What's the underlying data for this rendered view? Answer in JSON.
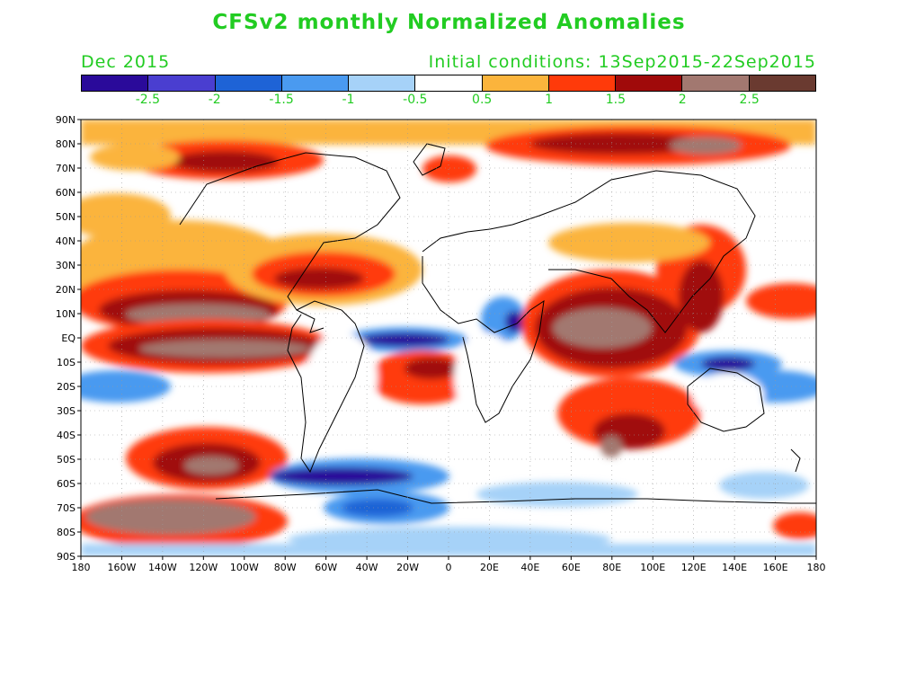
{
  "header": {
    "title": "CFSv2 monthly Normalized Anomalies",
    "month": "Dec 2015",
    "initial_conditions": "Initial conditions: 13Sep2015-22Sep2015"
  },
  "colorbar": {
    "colors": [
      "#2a0a9a",
      "#4a3ed0",
      "#1e63d6",
      "#4a9af0",
      "#a6d2f8",
      "#ffffff",
      "#fbb43c",
      "#ff3a0a",
      "#a00a0a",
      "#a27870",
      "#6a3a30"
    ],
    "labels": [
      "-2.5",
      "-2",
      "-1.5",
      "-1",
      "-0.5",
      "0.5",
      "1",
      "1.5",
      "2",
      "2.5"
    ]
  },
  "axes": {
    "lat_labels": [
      "90N",
      "80N",
      "70N",
      "60N",
      "50N",
      "40N",
      "30N",
      "20N",
      "10N",
      "EQ",
      "10S",
      "20S",
      "30S",
      "40S",
      "50S",
      "60S",
      "70S",
      "80S",
      "90S"
    ],
    "lon_labels": [
      "180",
      "160W",
      "140W",
      "120W",
      "100W",
      "80W",
      "60W",
      "40W",
      "20W",
      "0",
      "20E",
      "40E",
      "60E",
      "80E",
      "100E",
      "120E",
      "140E",
      "160E",
      "180"
    ]
  }
}
